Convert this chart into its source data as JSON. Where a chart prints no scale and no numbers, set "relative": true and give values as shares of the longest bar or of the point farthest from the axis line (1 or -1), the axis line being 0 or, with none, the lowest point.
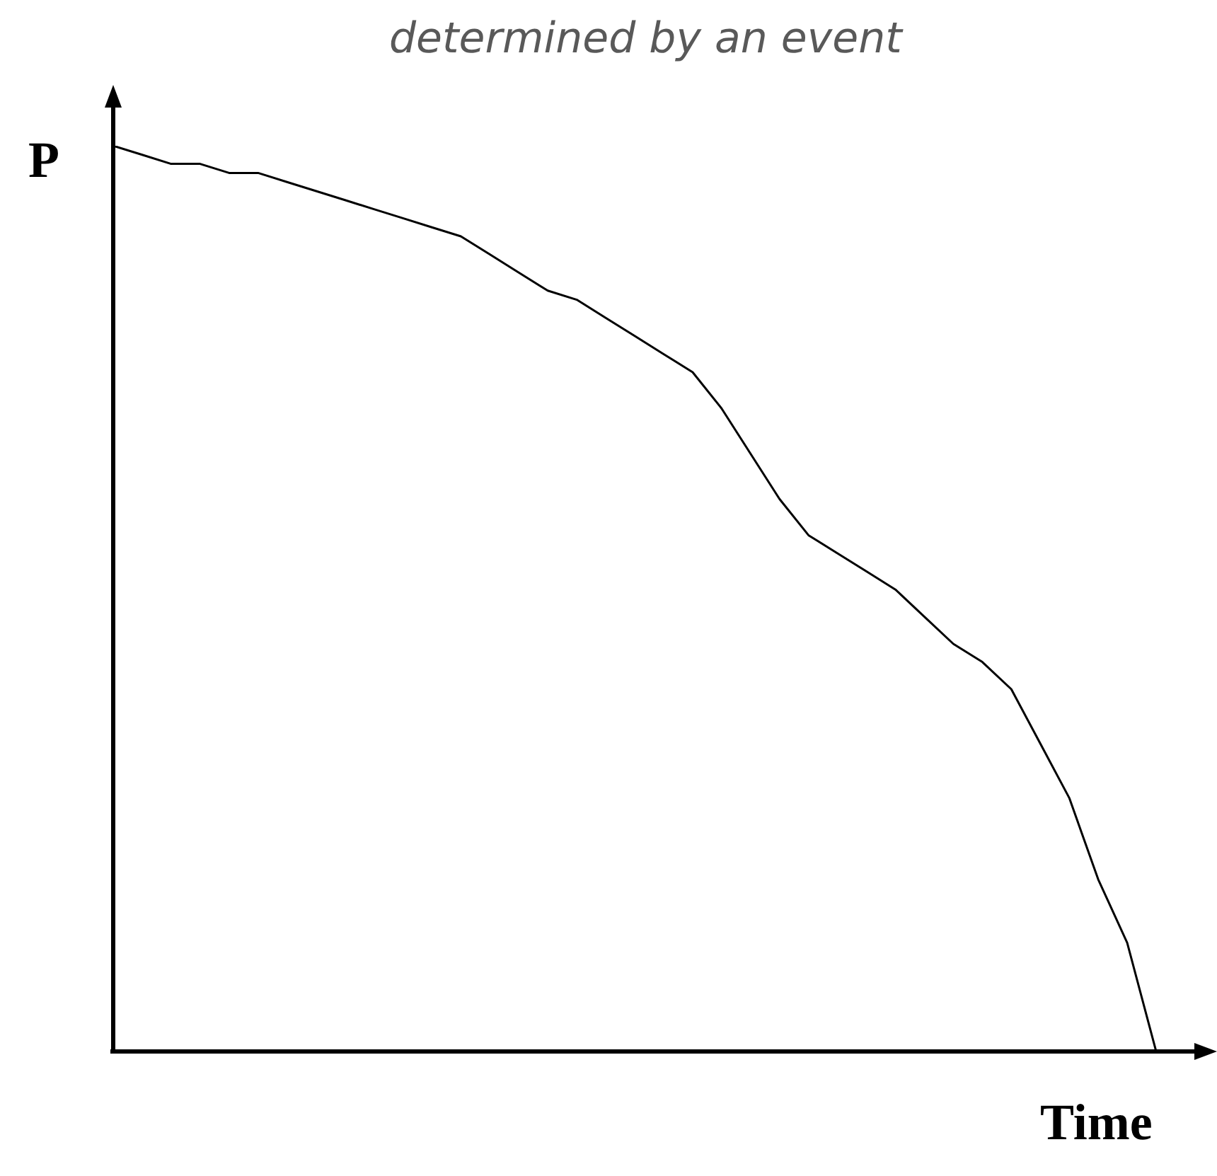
{
  "chart_data": {
    "type": "line",
    "title": "determined by an event",
    "xlabel": "Time",
    "ylabel": "P",
    "relative": true,
    "color": "#000000",
    "categories": [
      null,
      null,
      null,
      null,
      null,
      null,
      null,
      null,
      null,
      null,
      null,
      null,
      null,
      null,
      null,
      null,
      null,
      null,
      null,
      null,
      null,
      null,
      null,
      null,
      null,
      null,
      null,
      null,
      null,
      null,
      null,
      null,
      null,
      null,
      null,
      null,
      null
    ],
    "values": [
      1.0,
      0.99,
      0.98,
      0.98,
      0.97,
      0.97,
      0.96,
      0.95,
      0.94,
      0.93,
      0.92,
      0.91,
      0.9,
      0.88,
      0.86,
      0.84,
      0.83,
      0.81,
      0.79,
      0.77,
      0.75,
      0.71,
      0.66,
      0.61,
      0.57,
      0.55,
      0.53,
      0.51,
      0.48,
      0.45,
      0.43,
      0.4,
      0.34,
      0.28,
      0.19,
      0.12,
      0.0
    ]
  }
}
